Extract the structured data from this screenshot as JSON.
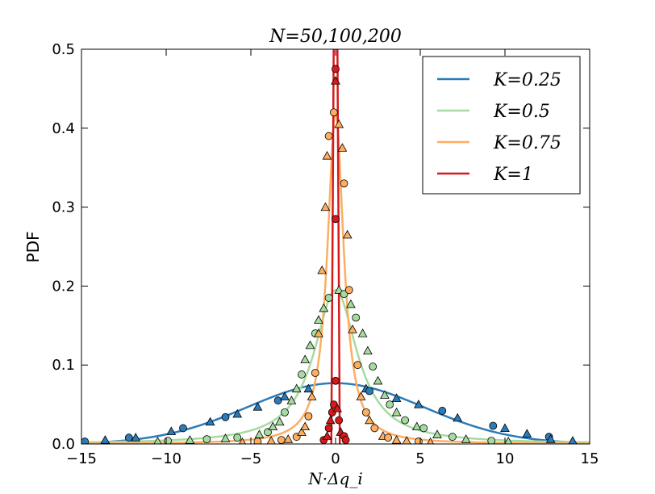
{
  "chart_data": {
    "type": "line",
    "title": "N=50,100,200",
    "xlabel": "N·Δq_i",
    "ylabel": "PDF",
    "xlim": [
      -15,
      15
    ],
    "ylim": [
      0,
      0.5
    ],
    "xticks": [
      "−15",
      "−10",
      "−5",
      "0",
      "5",
      "10",
      "15"
    ],
    "yticks": [
      "0.0",
      "0.1",
      "0.2",
      "0.3",
      "0.4",
      "0.5"
    ],
    "legend_position": "top-right",
    "series": [
      {
        "name": "K=0.25",
        "color": "#2b7bb9",
        "distribution": "gaussian",
        "peak": 0.077,
        "sigma": 5.2,
        "markers": [
          {
            "x": -14.8,
            "y": 0.003,
            "shape": "circle"
          },
          {
            "x": -13.6,
            "y": 0.005,
            "shape": "triangle"
          },
          {
            "x": -12.2,
            "y": 0.008,
            "shape": "circle"
          },
          {
            "x": -11.8,
            "y": 0.008,
            "shape": "triangle"
          },
          {
            "x": -9.7,
            "y": 0.016,
            "shape": "triangle"
          },
          {
            "x": -9.0,
            "y": 0.02,
            "shape": "circle"
          },
          {
            "x": -7.4,
            "y": 0.028,
            "shape": "triangle"
          },
          {
            "x": -6.5,
            "y": 0.034,
            "shape": "circle"
          },
          {
            "x": -5.8,
            "y": 0.038,
            "shape": "triangle"
          },
          {
            "x": -4.6,
            "y": 0.047,
            "shape": "triangle"
          },
          {
            "x": -3.4,
            "y": 0.055,
            "shape": "circle"
          },
          {
            "x": -3.0,
            "y": 0.06,
            "shape": "triangle"
          },
          {
            "x": -1.6,
            "y": 0.07,
            "shape": "triangle"
          },
          {
            "x": 1.8,
            "y": 0.07,
            "shape": "triangle"
          },
          {
            "x": 2.0,
            "y": 0.067,
            "shape": "circle"
          },
          {
            "x": 3.6,
            "y": 0.058,
            "shape": "triangle"
          },
          {
            "x": 4.9,
            "y": 0.05,
            "shape": "triangle"
          },
          {
            "x": 6.3,
            "y": 0.042,
            "shape": "circle"
          },
          {
            "x": 7.2,
            "y": 0.033,
            "shape": "triangle"
          },
          {
            "x": 9.3,
            "y": 0.023,
            "shape": "circle"
          },
          {
            "x": 10.0,
            "y": 0.02,
            "shape": "triangle"
          },
          {
            "x": 11.3,
            "y": 0.013,
            "shape": "triangle"
          },
          {
            "x": 12.6,
            "y": 0.009,
            "shape": "circle"
          },
          {
            "x": 12.7,
            "y": 0.006,
            "shape": "triangle"
          },
          {
            "x": 14.0,
            "y": 0.004,
            "shape": "triangle"
          }
        ]
      },
      {
        "name": "K=0.5",
        "color": "#a6dba0",
        "distribution": "lorentzian",
        "peak": 0.195,
        "gamma": 1.55,
        "markers": [
          {
            "x": -10.5,
            "y": 0.003,
            "shape": "triangle"
          },
          {
            "x": -9.9,
            "y": 0.004,
            "shape": "circle"
          },
          {
            "x": -8.6,
            "y": 0.005,
            "shape": "triangle"
          },
          {
            "x": -7.6,
            "y": 0.006,
            "shape": "circle"
          },
          {
            "x": -6.5,
            "y": 0.007,
            "shape": "triangle"
          },
          {
            "x": -5.8,
            "y": 0.008,
            "shape": "circle"
          },
          {
            "x": -4.5,
            "y": 0.012,
            "shape": "triangle"
          },
          {
            "x": -4.0,
            "y": 0.015,
            "shape": "circle"
          },
          {
            "x": -3.7,
            "y": 0.022,
            "shape": "triangle"
          },
          {
            "x": -3.3,
            "y": 0.028,
            "shape": "triangle"
          },
          {
            "x": -3.0,
            "y": 0.04,
            "shape": "circle"
          },
          {
            "x": -2.6,
            "y": 0.055,
            "shape": "triangle"
          },
          {
            "x": -2.3,
            "y": 0.07,
            "shape": "triangle"
          },
          {
            "x": -2.0,
            "y": 0.088,
            "shape": "circle"
          },
          {
            "x": -1.8,
            "y": 0.107,
            "shape": "triangle"
          },
          {
            "x": -1.5,
            "y": 0.125,
            "shape": "triangle"
          },
          {
            "x": -1.2,
            "y": 0.14,
            "shape": "circle"
          },
          {
            "x": -1.0,
            "y": 0.157,
            "shape": "triangle"
          },
          {
            "x": -0.7,
            "y": 0.172,
            "shape": "triangle"
          },
          {
            "x": -0.4,
            "y": 0.185,
            "shape": "circle"
          },
          {
            "x": 0.2,
            "y": 0.195,
            "shape": "triangle"
          },
          {
            "x": 0.5,
            "y": 0.19,
            "shape": "circle"
          },
          {
            "x": 0.9,
            "y": 0.177,
            "shape": "triangle"
          },
          {
            "x": 1.2,
            "y": 0.16,
            "shape": "circle"
          },
          {
            "x": 1.6,
            "y": 0.14,
            "shape": "triangle"
          },
          {
            "x": 1.9,
            "y": 0.118,
            "shape": "triangle"
          },
          {
            "x": 2.2,
            "y": 0.098,
            "shape": "circle"
          },
          {
            "x": 2.5,
            "y": 0.08,
            "shape": "triangle"
          },
          {
            "x": 2.9,
            "y": 0.062,
            "shape": "triangle"
          },
          {
            "x": 3.2,
            "y": 0.05,
            "shape": "circle"
          },
          {
            "x": 3.6,
            "y": 0.04,
            "shape": "triangle"
          },
          {
            "x": 4.1,
            "y": 0.03,
            "shape": "circle"
          },
          {
            "x": 4.8,
            "y": 0.022,
            "shape": "triangle"
          },
          {
            "x": 5.2,
            "y": 0.02,
            "shape": "circle"
          },
          {
            "x": 6.0,
            "y": 0.012,
            "shape": "triangle"
          },
          {
            "x": 6.9,
            "y": 0.009,
            "shape": "circle"
          },
          {
            "x": 7.7,
            "y": 0.006,
            "shape": "triangle"
          },
          {
            "x": 9.2,
            "y": 0.004,
            "shape": "circle"
          },
          {
            "x": 10.2,
            "y": 0.003,
            "shape": "triangle"
          }
        ]
      },
      {
        "name": "K=0.75",
        "color": "#fdae61",
        "distribution": "lorentzian",
        "peak": 0.42,
        "gamma": 0.58,
        "markers": [
          {
            "x": -5.5,
            "y": 0.002,
            "shape": "triangle"
          },
          {
            "x": -4.6,
            "y": 0.003,
            "shape": "circle"
          },
          {
            "x": -3.8,
            "y": 0.004,
            "shape": "triangle"
          },
          {
            "x": -3.2,
            "y": 0.005,
            "shape": "circle"
          },
          {
            "x": -2.8,
            "y": 0.006,
            "shape": "triangle"
          },
          {
            "x": -2.3,
            "y": 0.009,
            "shape": "circle"
          },
          {
            "x": -2.0,
            "y": 0.015,
            "shape": "triangle"
          },
          {
            "x": -1.8,
            "y": 0.022,
            "shape": "triangle"
          },
          {
            "x": -1.6,
            "y": 0.035,
            "shape": "circle"
          },
          {
            "x": -1.4,
            "y": 0.06,
            "shape": "triangle"
          },
          {
            "x": -1.2,
            "y": 0.09,
            "shape": "circle"
          },
          {
            "x": -1.0,
            "y": 0.14,
            "shape": "triangle"
          },
          {
            "x": -0.8,
            "y": 0.22,
            "shape": "triangle"
          },
          {
            "x": -0.6,
            "y": 0.3,
            "shape": "triangle"
          },
          {
            "x": -0.5,
            "y": 0.365,
            "shape": "triangle"
          },
          {
            "x": -0.4,
            "y": 0.39,
            "shape": "circle"
          },
          {
            "x": -0.1,
            "y": 0.42,
            "shape": "circle"
          },
          {
            "x": 0.2,
            "y": 0.405,
            "shape": "triangle"
          },
          {
            "x": 0.4,
            "y": 0.375,
            "shape": "triangle"
          },
          {
            "x": 0.5,
            "y": 0.33,
            "shape": "circle"
          },
          {
            "x": 0.7,
            "y": 0.265,
            "shape": "triangle"
          },
          {
            "x": 0.8,
            "y": 0.195,
            "shape": "circle"
          },
          {
            "x": 1.0,
            "y": 0.145,
            "shape": "triangle"
          },
          {
            "x": 1.3,
            "y": 0.1,
            "shape": "circle"
          },
          {
            "x": 1.5,
            "y": 0.06,
            "shape": "triangle"
          },
          {
            "x": 1.8,
            "y": 0.04,
            "shape": "circle"
          },
          {
            "x": 2.0,
            "y": 0.03,
            "shape": "triangle"
          },
          {
            "x": 2.3,
            "y": 0.02,
            "shape": "circle"
          },
          {
            "x": 2.8,
            "y": 0.01,
            "shape": "triangle"
          },
          {
            "x": 3.1,
            "y": 0.008,
            "shape": "circle"
          },
          {
            "x": 3.6,
            "y": 0.005,
            "shape": "triangle"
          },
          {
            "x": 4.2,
            "y": 0.004,
            "shape": "triangle"
          },
          {
            "x": 4.9,
            "y": 0.003,
            "shape": "circle"
          },
          {
            "x": 5.6,
            "y": 0.002,
            "shape": "triangle"
          }
        ]
      },
      {
        "name": "K=1",
        "color": "#d7191c",
        "distribution": "spike",
        "peak": 0.5,
        "width": 0.25,
        "markers": [
          {
            "x": -0.7,
            "y": 0.005,
            "shape": "circle"
          },
          {
            "x": -0.5,
            "y": 0.01,
            "shape": "triangle"
          },
          {
            "x": -0.4,
            "y": 0.02,
            "shape": "circle"
          },
          {
            "x": -0.3,
            "y": 0.03,
            "shape": "triangle"
          },
          {
            "x": -0.2,
            "y": 0.04,
            "shape": "circle"
          },
          {
            "x": -0.1,
            "y": 0.05,
            "shape": "circle"
          },
          {
            "x": 0.0,
            "y": 0.08,
            "shape": "circle"
          },
          {
            "x": 0.1,
            "y": 0.045,
            "shape": "triangle"
          },
          {
            "x": 0.2,
            "y": 0.03,
            "shape": "circle"
          },
          {
            "x": 0.3,
            "y": 0.015,
            "shape": "triangle"
          },
          {
            "x": 0.5,
            "y": 0.01,
            "shape": "circle"
          },
          {
            "x": 0.6,
            "y": 0.005,
            "shape": "circle"
          },
          {
            "x": 0.0,
            "y": 0.285,
            "shape": "circle"
          },
          {
            "x": 0.0,
            "y": 0.475,
            "shape": "circle"
          },
          {
            "x": 0.0,
            "y": 0.46,
            "shape": "triangle"
          }
        ]
      }
    ]
  }
}
